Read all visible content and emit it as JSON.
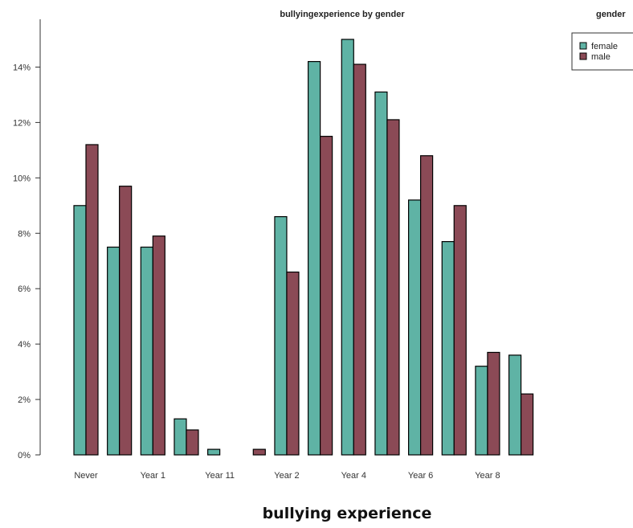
{
  "chart_data": {
    "type": "bar",
    "title": "bullyingexperience by gender",
    "xlabel": "bullying experience",
    "ylabel": "",
    "ylim": [
      0,
      15
    ],
    "y_ticks": [
      "0%",
      "2%",
      "4%",
      "6%",
      "8%",
      "10%",
      "12%",
      "14%"
    ],
    "y_tick_values": [
      0,
      2,
      4,
      6,
      8,
      10,
      12,
      14
    ],
    "categories": [
      "Never",
      "",
      "Year 1",
      "",
      "Year 11",
      "",
      "Year 2",
      "",
      "Year 4",
      "",
      "Year 6",
      "",
      "Year 8",
      ""
    ],
    "legend": {
      "title": "gender",
      "placement": "top-right"
    },
    "grid": false,
    "series": [
      {
        "name": "female",
        "color": "#5fb3a5",
        "values": [
          9.0,
          7.5,
          7.5,
          1.3,
          0.2,
          0.0,
          8.6,
          14.2,
          15.0,
          13.1,
          9.2,
          7.7,
          3.2,
          3.6
        ]
      },
      {
        "name": "male",
        "color": "#8b4a56",
        "values": [
          11.2,
          9.7,
          7.9,
          0.9,
          0.0,
          0.2,
          6.6,
          11.5,
          14.1,
          12.1,
          10.8,
          9.0,
          3.7,
          2.2
        ]
      }
    ]
  }
}
